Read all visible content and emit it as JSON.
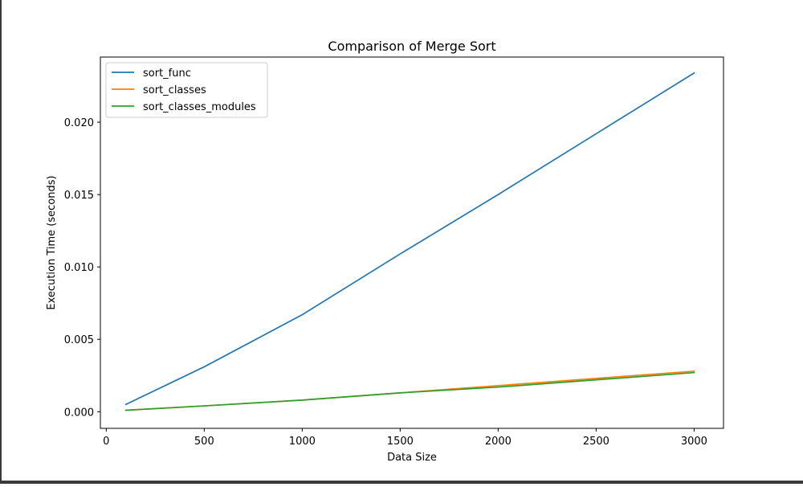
{
  "chart_data": {
    "type": "line",
    "title": "Comparison of Merge Sort",
    "xlabel": "Data Size",
    "ylabel": "Execution Time (seconds)",
    "xlim": [
      -30,
      3150
    ],
    "ylim": [
      -0.00115,
      0.0245
    ],
    "xticks": [
      0,
      500,
      1000,
      1500,
      2000,
      2500,
      3000
    ],
    "xtick_labels": [
      "0",
      "500",
      "1000",
      "1500",
      "2000",
      "2500",
      "3000"
    ],
    "yticks": [
      0.0,
      0.005,
      0.01,
      0.015,
      0.02
    ],
    "ytick_labels": [
      "0.000",
      "0.005",
      "0.010",
      "0.015",
      "0.020"
    ],
    "grid": false,
    "legend_position": "upper-left",
    "x": [
      100,
      500,
      1000,
      1500,
      2000,
      2500,
      3000
    ],
    "series": [
      {
        "name": "sort_func",
        "color": "#1f77b4",
        "values": [
          0.0005,
          0.0031,
          0.0067,
          0.0109,
          0.015,
          0.0192,
          0.0234
        ]
      },
      {
        "name": "sort_classes",
        "color": "#ff7f0e",
        "values": [
          0.0001,
          0.0004,
          0.0008,
          0.0013,
          0.0018,
          0.0023,
          0.0028
        ]
      },
      {
        "name": "sort_classes_modules",
        "color": "#2ca02c",
        "values": [
          0.0001,
          0.0004,
          0.0008,
          0.0013,
          0.0017,
          0.0022,
          0.0027
        ]
      }
    ]
  }
}
